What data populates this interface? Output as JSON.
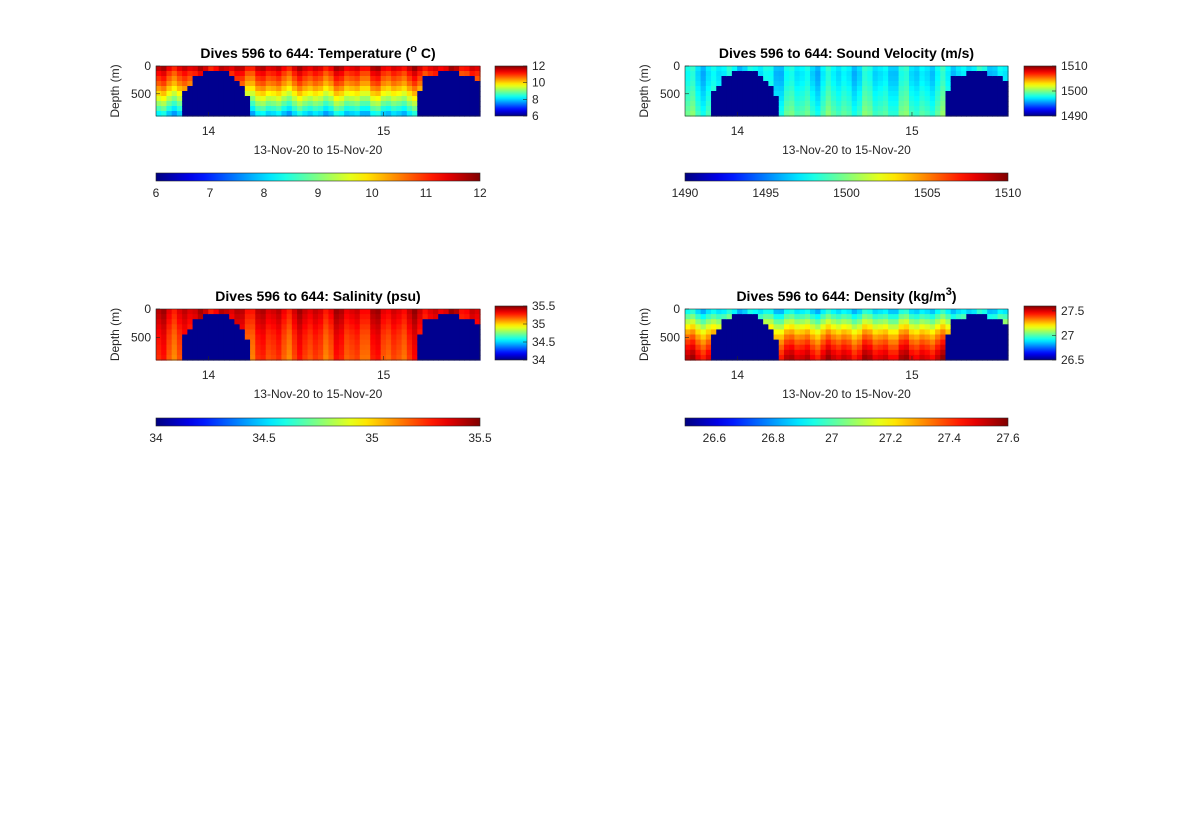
{
  "figure": {
    "background": "#ffffff",
    "land_color": "#00008f",
    "colormap": "jet"
  },
  "chart_data": [
    {
      "id": "temperature",
      "type": "heatmap",
      "title": "Dives 596 to 644: Temperature (",
      "title_sup": "o",
      "title_end": " C)",
      "ylabel": "Depth (m)",
      "xlabel": "13-Nov-20 to 15-Nov-20",
      "xlim": [
        13.7,
        15.55
      ],
      "x_ticks": [
        14,
        15
      ],
      "x_tick_labels": [
        "14",
        "15"
      ],
      "ylim": [
        0,
        900
      ],
      "y_reversed": true,
      "y_ticks": [
        0,
        500
      ],
      "y_tick_labels": [
        "0",
        "500"
      ],
      "clim": [
        6,
        12
      ],
      "side_colorbar_ticks": [
        12,
        10,
        8,
        6
      ],
      "side_colorbar_labels": [
        "12",
        "10",
        "8",
        "6"
      ],
      "bottom_colorbar_ticks": [
        6,
        7,
        8,
        9,
        10,
        11,
        12
      ],
      "bottom_colorbar_labels": [
        "6",
        "7",
        "8",
        "9",
        "10",
        "11",
        "12"
      ],
      "profile_depths": [
        0,
        150,
        300,
        450,
        600,
        750,
        900
      ],
      "profile_values": [
        11.6,
        11.0,
        10.6,
        10.0,
        9.3,
        8.6,
        7.8
      ]
    },
    {
      "id": "sound-velocity",
      "type": "heatmap",
      "title": "Dives 596 to 644: Sound Velocity (m/s)",
      "title_sup": "",
      "title_end": "",
      "ylabel": "Depth (m)",
      "xlabel": "13-Nov-20 to 15-Nov-20",
      "xlim": [
        13.7,
        15.55
      ],
      "x_ticks": [
        14,
        15
      ],
      "x_tick_labels": [
        "14",
        "15"
      ],
      "ylim": [
        0,
        900
      ],
      "y_reversed": true,
      "y_ticks": [
        0,
        500
      ],
      "y_tick_labels": [
        "0",
        "500"
      ],
      "clim": [
        1490,
        1510
      ],
      "side_colorbar_ticks": [
        1510,
        1500,
        1490
      ],
      "side_colorbar_labels": [
        "1510",
        "1500",
        "1490"
      ],
      "bottom_colorbar_ticks": [
        1490,
        1495,
        1500,
        1505,
        1510
      ],
      "bottom_colorbar_labels": [
        "1490",
        "1495",
        "1500",
        "1505",
        "1510"
      ],
      "profile_depths": [
        0,
        150,
        300,
        450,
        600,
        750,
        900
      ],
      "profile_values": [
        1497.5,
        1497.0,
        1497.3,
        1497.8,
        1498.2,
        1498.7,
        1499.2
      ]
    },
    {
      "id": "salinity",
      "type": "heatmap",
      "title": "Dives 596 to 644: Salinity (psu)",
      "title_sup": "",
      "title_end": "",
      "ylabel": "Depth (m)",
      "xlabel": "13-Nov-20 to 15-Nov-20",
      "xlim": [
        13.7,
        15.55
      ],
      "x_ticks": [
        14,
        15
      ],
      "x_tick_labels": [
        "14",
        "15"
      ],
      "ylim": [
        0,
        900
      ],
      "y_reversed": true,
      "y_ticks": [
        0,
        500
      ],
      "y_tick_labels": [
        "0",
        "500"
      ],
      "clim": [
        34,
        35.5
      ],
      "side_colorbar_ticks": [
        35.5,
        35,
        34.5,
        34
      ],
      "side_colorbar_labels": [
        "35.5",
        "35",
        "34.5",
        "34"
      ],
      "bottom_colorbar_ticks": [
        34,
        34.5,
        35,
        35.5
      ],
      "bottom_colorbar_labels": [
        "34",
        "34.5",
        "35",
        "35.5"
      ],
      "profile_depths": [
        0,
        150,
        300,
        450,
        600,
        750,
        900
      ],
      "profile_values": [
        35.38,
        35.34,
        35.3,
        35.26,
        35.24,
        35.22,
        35.2
      ]
    },
    {
      "id": "density",
      "type": "heatmap",
      "title": "Dives 596 to 644: Density (kg/m",
      "title_sup": "3",
      "title_end": ")",
      "ylabel": "Depth (m)",
      "xlabel": "13-Nov-20 to 15-Nov-20",
      "xlim": [
        13.7,
        15.55
      ],
      "x_ticks": [
        14,
        15
      ],
      "x_tick_labels": [
        "14",
        "15"
      ],
      "ylim": [
        0,
        900
      ],
      "y_reversed": true,
      "y_ticks": [
        0,
        500
      ],
      "y_tick_labels": [
        "0",
        "500"
      ],
      "clim": [
        26.5,
        27.6
      ],
      "side_colorbar_ticks": [
        27.5,
        27,
        26.5
      ],
      "side_colorbar_labels": [
        "27.5",
        "27",
        "26.5"
      ],
      "bottom_colorbar_ticks": [
        26.6,
        26.8,
        27,
        27.2,
        27.4,
        27.6
      ],
      "bottom_colorbar_labels": [
        "26.6",
        "26.8",
        "27",
        "27.2",
        "27.4",
        "27.6"
      ],
      "profile_depths": [
        0,
        150,
        300,
        450,
        600,
        750,
        900
      ],
      "profile_values": [
        26.85,
        27.0,
        27.15,
        27.28,
        27.38,
        27.46,
        27.52
      ]
    }
  ]
}
